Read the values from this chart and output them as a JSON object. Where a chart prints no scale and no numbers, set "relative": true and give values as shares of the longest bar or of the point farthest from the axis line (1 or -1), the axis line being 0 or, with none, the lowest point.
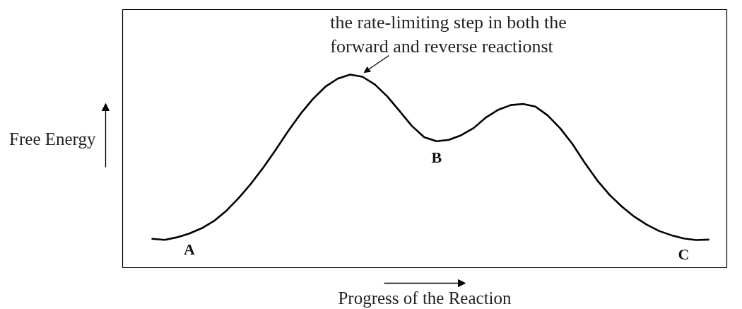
{
  "chart_data": {
    "type": "line",
    "relative": true,
    "xlabel": "Progress of the Reaction",
    "ylabel": "Free Energy",
    "categories": [
      null,
      null,
      null,
      null,
      null,
      null,
      null,
      null,
      null,
      null,
      null,
      null,
      null,
      null,
      null,
      null,
      null,
      null,
      null,
      null,
      null,
      null,
      null,
      null,
      null,
      null,
      null,
      null,
      null,
      null,
      null,
      null,
      null,
      null,
      null,
      null,
      null,
      null,
      null,
      null,
      null,
      null,
      null,
      null,
      null,
      null
    ],
    "color": "#000000",
    "values": [
      0.149,
      0.144,
      0.157,
      0.177,
      0.204,
      0.242,
      0.295,
      0.361,
      0.436,
      0.52,
      0.612,
      0.708,
      0.797,
      0.874,
      0.937,
      0.979,
      1.0,
      0.989,
      0.949,
      0.888,
      0.812,
      0.734,
      0.676,
      0.655,
      0.662,
      0.686,
      0.723,
      0.778,
      0.818,
      0.842,
      0.848,
      0.834,
      0.788,
      0.722,
      0.64,
      0.542,
      0.452,
      0.377,
      0.316,
      0.264,
      0.223,
      0.19,
      0.168,
      0.151,
      0.143,
      0.145
    ],
    "annotations": [
      "the rate-limiting step in both the\nforward and reverse reactionst",
      {
        "text": "A",
        "y": 0.177
      },
      {
        "text": "B",
        "y": 0.655
      },
      {
        "text": "C",
        "y": 0.151
      }
    ],
    "line_style": "solid"
  }
}
